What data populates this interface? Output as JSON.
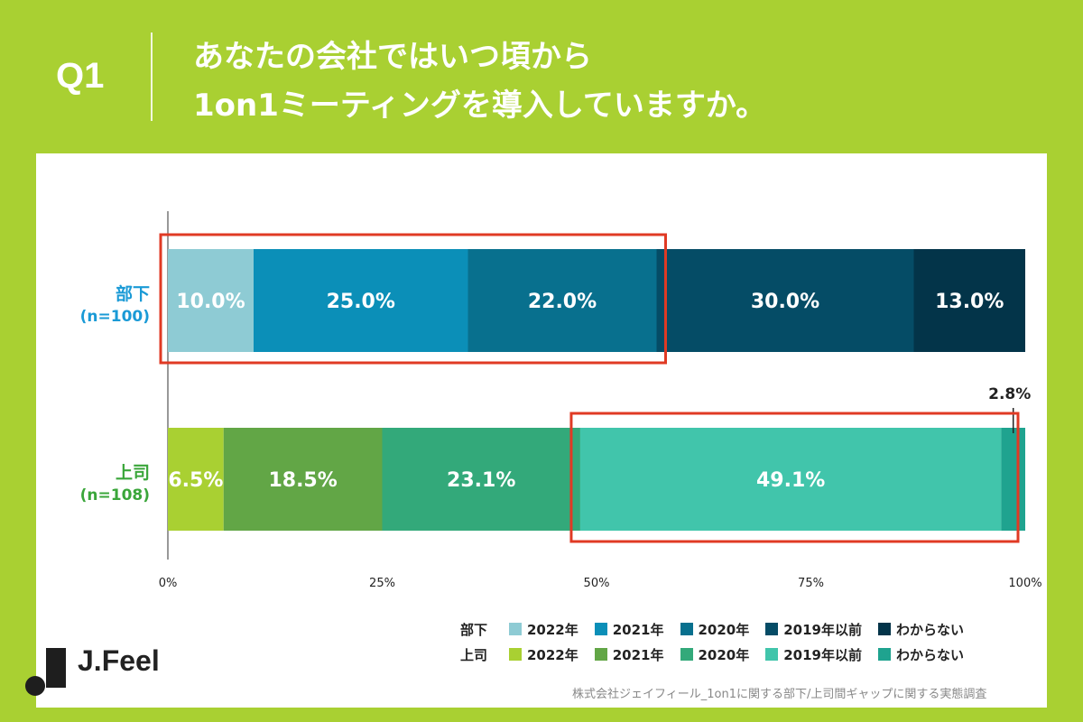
{
  "header": {
    "q_label": "Q1",
    "title_line1": "あなたの会社ではいつ頃から",
    "title_line2": "1on1ミーティングを導入していますか。"
  },
  "chart_data": {
    "type": "stacked_bar_horizontal",
    "x_ticks": [
      "0%",
      "25%",
      "50%",
      "75%",
      "100%"
    ],
    "xlim": [
      0,
      100
    ],
    "categories": [
      "2022年",
      "2021年",
      "2020年",
      "2019年以前",
      "わからない"
    ],
    "rows": [
      {
        "name": "部下",
        "n_label": "(n=100)",
        "label_color": "#1a9ad6",
        "values": [
          10.0,
          25.0,
          22.0,
          30.0,
          13.0
        ],
        "value_labels": [
          "10.0%",
          "25.0%",
          "22.0%",
          "30.0%",
          "13.0%"
        ],
        "colors": [
          "#8ecbd4",
          "#0b8fb8",
          "#08708e",
          "#054c66",
          "#033449"
        ]
      },
      {
        "name": "上司",
        "n_label": "(n=108)",
        "label_color": "#3aa63a",
        "values": [
          6.5,
          18.5,
          23.1,
          49.1,
          2.8
        ],
        "value_labels": [
          "6.5%",
          "18.5%",
          "23.1%",
          "49.1%",
          "2.8%"
        ],
        "colors": [
          "#a9d032",
          "#62a646",
          "#33a97a",
          "#41c5ab",
          "#1fa38f"
        ]
      }
    ],
    "highlights": [
      {
        "row": 0,
        "from_segment": 0,
        "to_segment": 2,
        "color": "#e03a24"
      },
      {
        "row": 1,
        "from_segment": 3,
        "to_segment": 4,
        "color": "#e03a24"
      }
    ]
  },
  "legend": {
    "rows": [
      {
        "group": "部下",
        "items": [
          "2022年",
          "2021年",
          "2020年",
          "2019年以前",
          "わからない"
        ],
        "colors": [
          "#8ecbd4",
          "#0b8fb8",
          "#08708e",
          "#054c66",
          "#033449"
        ]
      },
      {
        "group": "上司",
        "items": [
          "2022年",
          "2021年",
          "2020年",
          "2019年以前",
          "わからない"
        ],
        "colors": [
          "#a9d032",
          "#62a646",
          "#33a97a",
          "#41c5ab",
          "#1fa38f"
        ]
      }
    ]
  },
  "brand": {
    "name": "J.Feel"
  },
  "source": "株式会社ジェイフィール_1on1に関する部下/上司間ギャップに関する実態調査"
}
